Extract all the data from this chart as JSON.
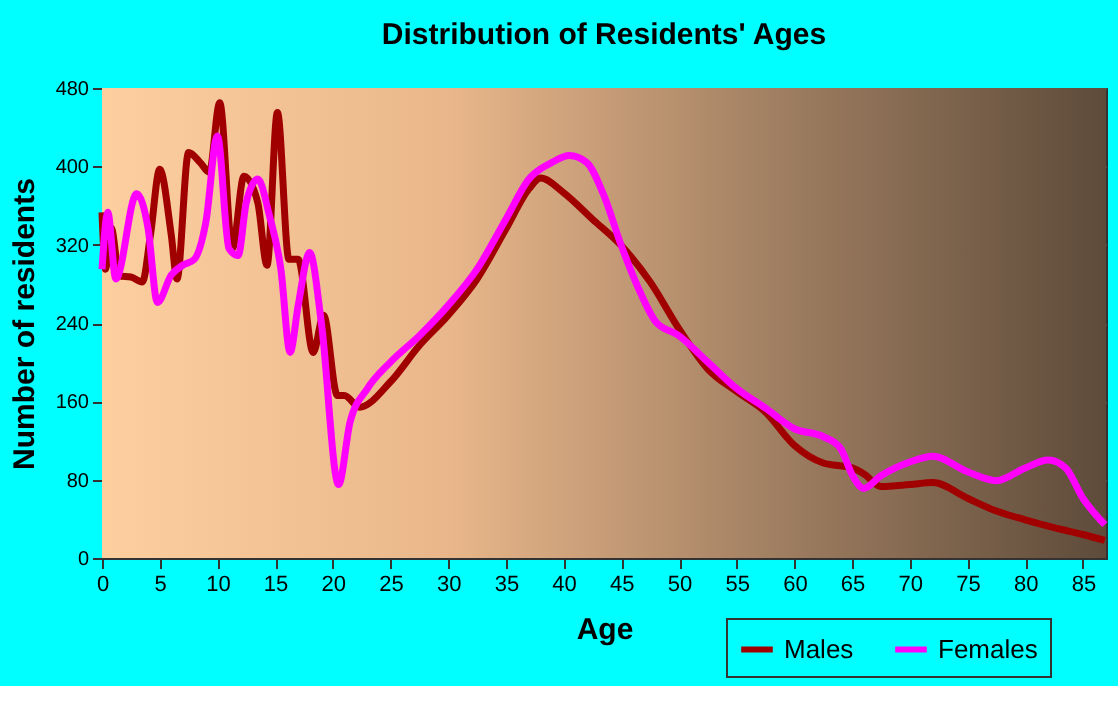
{
  "chart_data": {
    "type": "line",
    "title": "Distribution of Residents' Ages",
    "xlabel": "Age",
    "ylabel": "Number of residents",
    "xlim": [
      0,
      87
    ],
    "xticks": [
      0,
      5,
      10,
      15,
      20,
      25,
      30,
      35,
      40,
      45,
      50,
      55,
      60,
      65,
      70,
      75,
      80,
      85
    ],
    "ylim": [
      0,
      480
    ],
    "yticks": [
      0,
      80,
      160,
      240,
      320,
      400,
      480
    ],
    "grid": true,
    "legend": "bottom right",
    "marker": "none",
    "line_style": "solid",
    "series": [
      {
        "name": "Males",
        "color": "#a00000",
        "x": [
          0,
          0.3,
          0.8,
          1.5,
          2.5,
          3.5,
          4.2,
          5,
          6,
          6.5,
          7.5,
          8.5,
          9.3,
          10.2,
          11.3,
          12.3,
          13.5,
          14.3,
          15.2,
          16.2,
          17,
          18.3,
          19.2,
          20.4,
          21,
          22.3,
          25,
          27.5,
          30,
          32.5,
          35,
          37,
          38,
          40,
          42.5,
          45,
          47.5,
          50,
          52.5,
          55,
          57.5,
          60,
          62.5,
          65,
          66,
          67.5,
          70,
          72,
          75,
          77.5,
          80,
          82.5,
          85,
          86.9
        ],
        "values": [
          353,
          295,
          337,
          288,
          287,
          282,
          330,
          397,
          330,
          285,
          414,
          404,
          394,
          465,
          316,
          390,
          363,
          299,
          455,
          305,
          305,
          210,
          248,
          166,
          166,
          154,
          180,
          217,
          248,
          285,
          336,
          377,
          388,
          373,
          346,
          319,
          282,
          234,
          193,
          170,
          149,
          115,
          97,
          92,
          86,
          73,
          75,
          77,
          61,
          48,
          39,
          31,
          24,
          18
        ]
      },
      {
        "name": "Females",
        "color": "#ff00ff",
        "x": [
          0,
          0.5,
          1.2,
          3,
          4,
          4.8,
          6,
          7,
          8,
          9,
          10,
          11,
          11.8,
          12.5,
          13.5,
          14.5,
          15.5,
          16.3,
          17,
          18,
          19,
          20.5,
          21.5,
          23,
          25,
          27.5,
          30,
          32.5,
          35,
          37,
          39,
          40.5,
          42,
          43.5,
          45,
          46.5,
          48,
          50,
          52.5,
          55,
          57.5,
          60,
          62.5,
          64,
          65,
          66,
          67.5,
          70,
          72,
          75,
          77.5,
          80,
          82,
          83.5,
          85,
          86.9
        ],
        "values": [
          295,
          353,
          285,
          372,
          336,
          261,
          289,
          299,
          305,
          343,
          431,
          316,
          309,
          363,
          387,
          350,
          295,
          210,
          258,
          312,
          241,
          75,
          139,
          173,
          200,
          227,
          258,
          295,
          346,
          387,
          404,
          411,
          404,
          370,
          319,
          275,
          241,
          227,
          200,
          173,
          153,
          132,
          124,
          112,
          85,
          71,
          84,
          98,
          104,
          88,
          79,
          92,
          100,
          92,
          61,
          34
        ]
      }
    ]
  }
}
